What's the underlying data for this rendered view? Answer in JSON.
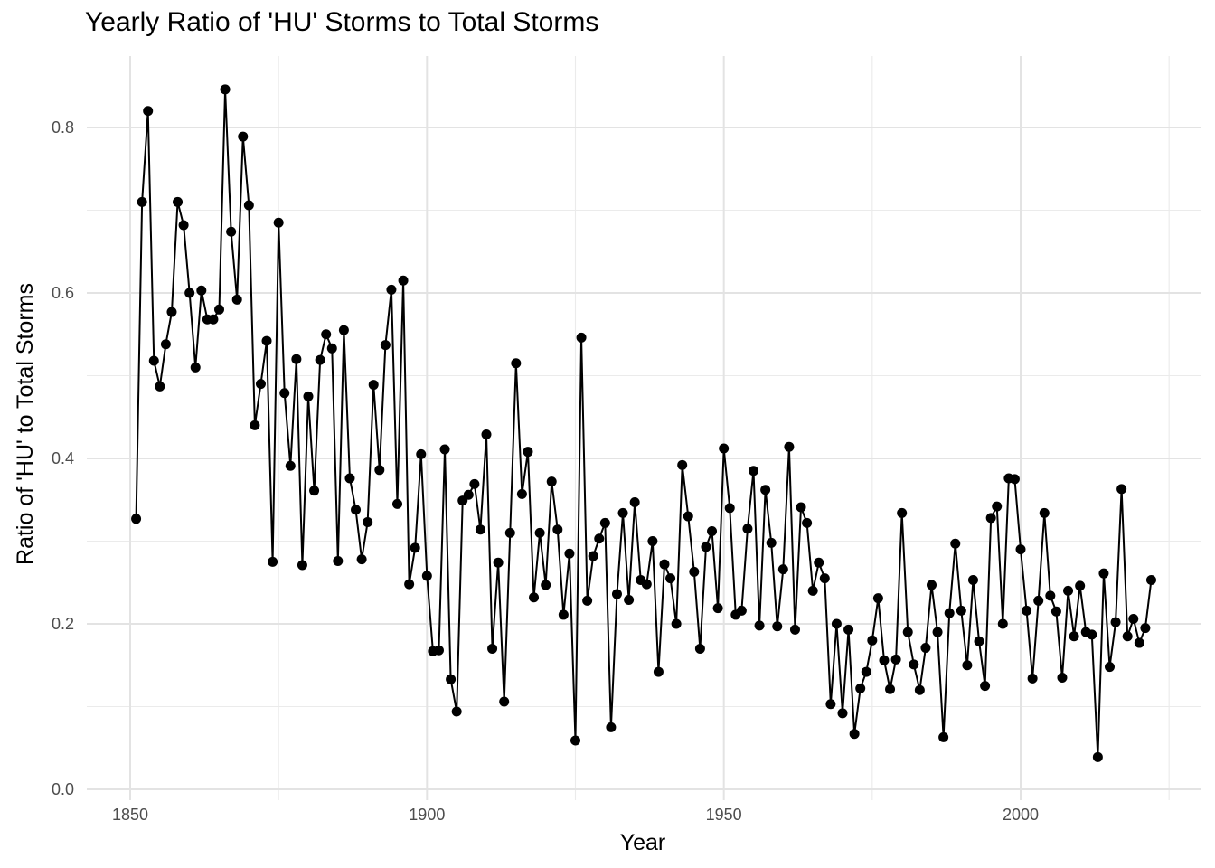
{
  "chart_data": {
    "type": "line",
    "title": "Yearly Ratio of 'HU' Storms to Total Storms",
    "xlabel": "Year",
    "ylabel": "Ratio of 'HU' to Total Storms",
    "xlim": [
      1850,
      2022
    ],
    "ylim": [
      0,
      0.87
    ],
    "x_ticks": [
      1850,
      1900,
      1950,
      2000
    ],
    "y_ticks": [
      0.0,
      0.2,
      0.4,
      0.6,
      0.8
    ],
    "y_tick_labels": [
      "0.0",
      "0.2",
      "0.4",
      "0.6",
      "0.8"
    ],
    "grid": true,
    "markers": true,
    "line_color": "#000000",
    "series": [
      {
        "x": [
          1851,
          1852,
          1853,
          1854,
          1855,
          1856,
          1857,
          1858,
          1859,
          1860,
          1861,
          1862,
          1863,
          1864,
          1865,
          1866,
          1867,
          1868,
          1869,
          1870,
          1871,
          1872,
          1873,
          1874,
          1875,
          1876,
          1877,
          1878,
          1879,
          1880,
          1881,
          1882,
          1883,
          1884,
          1885,
          1886,
          1887,
          1888,
          1889,
          1890,
          1891,
          1892,
          1893,
          1894,
          1895,
          1896,
          1897,
          1898,
          1899,
          1900,
          1901,
          1902,
          1903,
          1904,
          1905,
          1906,
          1907,
          1908,
          1909,
          1910,
          1911,
          1912,
          1913,
          1914,
          1915,
          1916,
          1917,
          1918,
          1919,
          1920,
          1921,
          1922,
          1923,
          1924,
          1925,
          1926,
          1927,
          1928,
          1929,
          1930,
          1931,
          1932,
          1933,
          1934,
          1935,
          1936,
          1937,
          1938,
          1939,
          1940,
          1941,
          1942,
          1943,
          1944,
          1945,
          1946,
          1947,
          1948,
          1949,
          1950,
          1951,
          1952,
          1953,
          1954,
          1955,
          1956,
          1957,
          1958,
          1959,
          1960,
          1961,
          1962,
          1963,
          1964,
          1965,
          1966,
          1967,
          1968,
          1969,
          1970,
          1971,
          1972,
          1973,
          1974,
          1975,
          1976,
          1977,
          1978,
          1979,
          1980,
          1981,
          1982,
          1983,
          1984,
          1985,
          1986,
          1987,
          1988,
          1989,
          1990,
          1991,
          1992,
          1993,
          1994,
          1995,
          1996,
          1997,
          1998,
          1999,
          2000,
          2001,
          2002,
          2003,
          2004,
          2005,
          2006,
          2007,
          2008,
          2009,
          2010,
          2011,
          2012,
          2013,
          2014,
          2015,
          2016,
          2017,
          2018,
          2019,
          2020,
          2021,
          2022
        ],
        "values": [
          0.327,
          0.71,
          0.82,
          0.518,
          0.487,
          0.538,
          0.577,
          0.71,
          0.682,
          0.6,
          0.51,
          0.603,
          0.568,
          0.568,
          0.58,
          0.846,
          0.674,
          0.592,
          0.789,
          0.706,
          0.44,
          0.49,
          0.542,
          0.275,
          0.685,
          0.479,
          0.391,
          0.52,
          0.271,
          0.475,
          0.361,
          0.519,
          0.55,
          0.533,
          0.276,
          0.555,
          0.376,
          0.338,
          0.278,
          0.323,
          0.489,
          0.386,
          0.537,
          0.604,
          0.345,
          0.615,
          0.248,
          0.292,
          0.405,
          0.258,
          0.167,
          0.168,
          0.411,
          0.133,
          0.094,
          0.349,
          0.356,
          0.369,
          0.314,
          0.429,
          0.17,
          0.274,
          0.106,
          0.31,
          0.515,
          0.357,
          0.408,
          0.232,
          0.31,
          0.247,
          0.372,
          0.314,
          0.211,
          0.285,
          0.059,
          0.546,
          0.228,
          0.282,
          0.303,
          0.322,
          0.075,
          0.236,
          0.334,
          0.229,
          0.347,
          0.253,
          0.248,
          0.3,
          0.142,
          0.272,
          0.255,
          0.2,
          0.392,
          0.33,
          0.263,
          0.17,
          0.293,
          0.312,
          0.219,
          0.412,
          0.34,
          0.211,
          0.216,
          0.315,
          0.385,
          0.198,
          0.362,
          0.298,
          0.197,
          0.266,
          0.414,
          0.193,
          0.341,
          0.322,
          0.24,
          0.274,
          0.255,
          0.103,
          0.2,
          0.092,
          0.193,
          0.067,
          0.122,
          0.142,
          0.18,
          0.231,
          0.156,
          0.121,
          0.157,
          0.334,
          0.19,
          0.151,
          0.12,
          0.171,
          0.247,
          0.19,
          0.063,
          0.213,
          0.297,
          0.216,
          0.15,
          0.253,
          0.179,
          0.125,
          0.328,
          0.342,
          0.2,
          0.376,
          0.375,
          0.29,
          0.216,
          0.134,
          0.228,
          0.334,
          0.234,
          0.215,
          0.135,
          0.24,
          0.185,
          0.246,
          0.19,
          0.187,
          0.039,
          0.261,
          0.148,
          0.202,
          0.363,
          0.185,
          0.206,
          0.177,
          0.195,
          0.253
        ]
      }
    ]
  }
}
